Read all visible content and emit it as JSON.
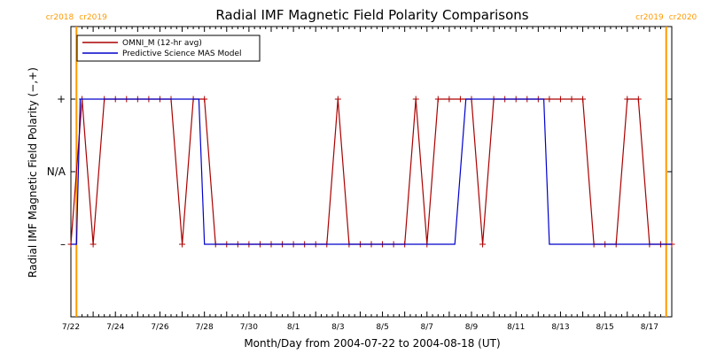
{
  "chart_data": {
    "type": "line",
    "title": "Radial IMF Magnetic Field Polarity Comparisons",
    "xlabel": "Month/Day from 2004-07-22 to 2004-08-18 (UT)",
    "ylabel": "Radial IMF Magnetic Field Polarity (−,+)",
    "xlim": [
      "2004-07-22T00:00",
      "2004-08-18T00:00"
    ],
    "y_categories": [
      "–",
      "N/A",
      "+"
    ],
    "y_values_map": {
      "–": -1,
      "N/A": 0,
      "+": 1
    },
    "ylim": [
      -2,
      2
    ],
    "x_tick_labels": [
      {
        "x": "2004-07-22",
        "label": "7/22"
      },
      {
        "x": "2004-07-24",
        "label": "7/24"
      },
      {
        "x": "2004-07-26",
        "label": "7/26"
      },
      {
        "x": "2004-07-28",
        "label": "7/28"
      },
      {
        "x": "2004-07-30",
        "label": "7/30"
      },
      {
        "x": "2004-08-01",
        "label": "8/1"
      },
      {
        "x": "2004-08-03",
        "label": "8/3"
      },
      {
        "x": "2004-08-05",
        "label": "8/5"
      },
      {
        "x": "2004-08-07",
        "label": "8/7"
      },
      {
        "x": "2004-08-09",
        "label": "8/9"
      },
      {
        "x": "2004-08-11",
        "label": "8/11"
      },
      {
        "x": "2004-08-13",
        "label": "8/13"
      },
      {
        "x": "2004-08-15",
        "label": "8/15"
      },
      {
        "x": "2004-08-17",
        "label": "8/17"
      }
    ],
    "carrington_markers": [
      {
        "x": "2004-07-22T06:00",
        "left_label": "cr2018",
        "right_label": "cr2019"
      },
      {
        "x": "2004-08-17T18:00",
        "left_label": "cr2019",
        "right_label": "cr2020"
      }
    ],
    "series": [
      {
        "name": "OMNI_M (12-hr avg)",
        "color": "#aa0000",
        "markers": "plus",
        "points": [
          {
            "x": "2004-07-22T00:00",
            "y": -1
          },
          {
            "x": "2004-07-22T12:00",
            "y": 1
          },
          {
            "x": "2004-07-23T00:00",
            "y": -1
          },
          {
            "x": "2004-07-23T12:00",
            "y": 1
          },
          {
            "x": "2004-07-24T00:00",
            "y": 1
          },
          {
            "x": "2004-07-24T12:00",
            "y": 1
          },
          {
            "x": "2004-07-25T00:00",
            "y": 1
          },
          {
            "x": "2004-07-25T12:00",
            "y": 1
          },
          {
            "x": "2004-07-26T00:00",
            "y": 1
          },
          {
            "x": "2004-07-26T12:00",
            "y": 1
          },
          {
            "x": "2004-07-27T00:00",
            "y": -1
          },
          {
            "x": "2004-07-27T12:00",
            "y": 1
          },
          {
            "x": "2004-07-28T00:00",
            "y": 1
          },
          {
            "x": "2004-07-28T12:00",
            "y": -1
          },
          {
            "x": "2004-07-29T00:00",
            "y": -1
          },
          {
            "x": "2004-07-29T12:00",
            "y": -1
          },
          {
            "x": "2004-07-30T00:00",
            "y": -1
          },
          {
            "x": "2004-07-30T12:00",
            "y": -1
          },
          {
            "x": "2004-07-31T00:00",
            "y": -1
          },
          {
            "x": "2004-07-31T12:00",
            "y": -1
          },
          {
            "x": "2004-08-01T00:00",
            "y": -1
          },
          {
            "x": "2004-08-01T12:00",
            "y": -1
          },
          {
            "x": "2004-08-02T00:00",
            "y": -1
          },
          {
            "x": "2004-08-02T12:00",
            "y": -1
          },
          {
            "x": "2004-08-03T00:00",
            "y": 1
          },
          {
            "x": "2004-08-03T12:00",
            "y": -1
          },
          {
            "x": "2004-08-04T00:00",
            "y": -1
          },
          {
            "x": "2004-08-04T12:00",
            "y": -1
          },
          {
            "x": "2004-08-05T00:00",
            "y": -1
          },
          {
            "x": "2004-08-05T12:00",
            "y": -1
          },
          {
            "x": "2004-08-06T00:00",
            "y": -1
          },
          {
            "x": "2004-08-06T12:00",
            "y": 1
          },
          {
            "x": "2004-08-07T00:00",
            "y": -1
          },
          {
            "x": "2004-08-07T12:00",
            "y": 1
          },
          {
            "x": "2004-08-08T00:00",
            "y": 1
          },
          {
            "x": "2004-08-08T12:00",
            "y": 1
          },
          {
            "x": "2004-08-09T00:00",
            "y": 1
          },
          {
            "x": "2004-08-09T12:00",
            "y": -1
          },
          {
            "x": "2004-08-10T00:00",
            "y": 1
          },
          {
            "x": "2004-08-10T12:00",
            "y": 1
          },
          {
            "x": "2004-08-11T00:00",
            "y": 1
          },
          {
            "x": "2004-08-11T12:00",
            "y": 1
          },
          {
            "x": "2004-08-12T00:00",
            "y": 1
          },
          {
            "x": "2004-08-12T12:00",
            "y": 1
          },
          {
            "x": "2004-08-13T00:00",
            "y": 1
          },
          {
            "x": "2004-08-13T12:00",
            "y": 1
          },
          {
            "x": "2004-08-14T00:00",
            "y": 1
          },
          {
            "x": "2004-08-14T12:00",
            "y": -1
          },
          {
            "x": "2004-08-15T00:00",
            "y": -1
          },
          {
            "x": "2004-08-15T12:00",
            "y": -1
          },
          {
            "x": "2004-08-16T00:00",
            "y": 1
          },
          {
            "x": "2004-08-16T12:00",
            "y": 1
          },
          {
            "x": "2004-08-17T00:00",
            "y": -1
          },
          {
            "x": "2004-08-17T12:00",
            "y": -1
          },
          {
            "x": "2004-08-18T00:00",
            "y": -1
          }
        ]
      },
      {
        "name": "Predictive Science MAS Model",
        "color": "#0000cc",
        "markers": "none",
        "points": [
          {
            "x": "2004-07-22T00:00",
            "y": -1
          },
          {
            "x": "2004-07-22T06:00",
            "y": -1
          },
          {
            "x": "2004-07-22T10:00",
            "y": 1
          },
          {
            "x": "2004-07-27T18:00",
            "y": 1
          },
          {
            "x": "2004-07-28T00:00",
            "y": -1
          },
          {
            "x": "2004-08-08T06:00",
            "y": -1
          },
          {
            "x": "2004-08-08T18:00",
            "y": 1
          },
          {
            "x": "2004-08-12T06:00",
            "y": 1
          },
          {
            "x": "2004-08-12T12:00",
            "y": -1
          },
          {
            "x": "2004-08-18T00:00",
            "y": -1
          }
        ]
      }
    ],
    "legend_position": "top-left"
  }
}
